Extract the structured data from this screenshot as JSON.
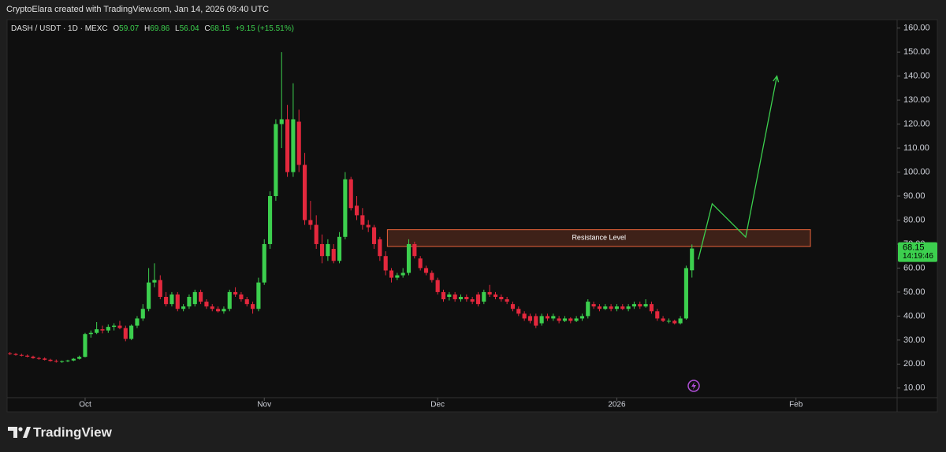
{
  "header": {
    "text": "CryptoElara created with TradingView.com, Jan 14, 2026 09:40 UTC"
  },
  "chart_data": {
    "type": "candlestick",
    "symbol": "DASH / USDT · 1D · MEXC",
    "ohlc_labels": [
      "O",
      "H",
      "L",
      "C"
    ],
    "ohlc_header": [
      59.07,
      69.86,
      56.04,
      68.15
    ],
    "change": "+9.15 (+15.51%)",
    "countdown": "14:19:46",
    "up_color": "#3ccf4e",
    "down_color": "#e3283d",
    "grid": false,
    "xlim": [
      -0.5,
      153.5
    ],
    "xticks": [
      {
        "value": 13,
        "label": "Oct"
      },
      {
        "value": 44,
        "label": "Nov"
      },
      {
        "value": 74,
        "label": "Dec"
      },
      {
        "value": 105,
        "label": "2026"
      },
      {
        "value": 136,
        "label": "Feb"
      }
    ],
    "ylim": [
      6.0,
      163.5
    ],
    "yticks": [
      {
        "value": 10,
        "label": "10.00"
      },
      {
        "value": 20,
        "label": "20.00"
      },
      {
        "value": 30,
        "label": "30.00"
      },
      {
        "value": 40,
        "label": "40.00"
      },
      {
        "value": 50,
        "label": "50.00"
      },
      {
        "value": 60,
        "label": "60.00"
      },
      {
        "value": 70,
        "label": "70.00"
      },
      {
        "value": 80,
        "label": "80.00"
      },
      {
        "value": 90,
        "label": "90.00"
      },
      {
        "value": 100,
        "label": "100.00"
      },
      {
        "value": 110,
        "label": "110.00"
      },
      {
        "value": 120,
        "label": "120.00"
      },
      {
        "value": 130,
        "label": "130.00"
      },
      {
        "value": 140,
        "label": "140.00"
      },
      {
        "value": 150,
        "label": "150.00"
      },
      {
        "value": 160,
        "label": "160.00"
      }
    ],
    "ohlc": [
      [
        24.5,
        25,
        23.8,
        24.2
      ],
      [
        24.2,
        24.6,
        23.5,
        23.8
      ],
      [
        23.8,
        24.3,
        23.2,
        23.5
      ],
      [
        23.5,
        24,
        22.8,
        23.1
      ],
      [
        23.1,
        23.5,
        22.2,
        22.5
      ],
      [
        22.5,
        23,
        21.8,
        22.3
      ],
      [
        22.3,
        22.8,
        21.5,
        21.8
      ],
      [
        21.8,
        22.2,
        21,
        21.3
      ],
      [
        21.3,
        21.9,
        20.6,
        21
      ],
      [
        21,
        21.5,
        20.5,
        21.2
      ],
      [
        21.2,
        21.8,
        20.8,
        21.5
      ],
      [
        21.5,
        22.5,
        21.2,
        22.2
      ],
      [
        22.2,
        23.5,
        21.9,
        23
      ],
      [
        23,
        33,
        22.8,
        32.5
      ],
      [
        32.5,
        34,
        31,
        33
      ],
      [
        33,
        37.5,
        32.5,
        34.5
      ],
      [
        34.5,
        36,
        32.8,
        34
      ],
      [
        34,
        36.5,
        33,
        35.5
      ],
      [
        35.5,
        37,
        34,
        36
      ],
      [
        36,
        38,
        34.5,
        35
      ],
      [
        35,
        36,
        29.5,
        30.5
      ],
      [
        30.5,
        36.5,
        30,
        36
      ],
      [
        36,
        40,
        35,
        39
      ],
      [
        39,
        45,
        38,
        43
      ],
      [
        43,
        60,
        42,
        54
      ],
      [
        54,
        62,
        52,
        55
      ],
      [
        55,
        57,
        47,
        48
      ],
      [
        48,
        50,
        44,
        45
      ],
      [
        45,
        50,
        44,
        49
      ],
      [
        49,
        50,
        42,
        43
      ],
      [
        43,
        45,
        42,
        44
      ],
      [
        44,
        49,
        43,
        48
      ],
      [
        45,
        51,
        44,
        50
      ],
      [
        50,
        51,
        45,
        46
      ],
      [
        46,
        47,
        43,
        44
      ],
      [
        44,
        45,
        42,
        43
      ],
      [
        43,
        44,
        41.5,
        42
      ],
      [
        42,
        44,
        41,
        43
      ],
      [
        43,
        51,
        42,
        50
      ],
      [
        50,
        52,
        48,
        49
      ],
      [
        49,
        50,
        46,
        47
      ],
      [
        47,
        48,
        44,
        45
      ],
      [
        45,
        46,
        41,
        43
      ],
      [
        43,
        56,
        42,
        54
      ],
      [
        54,
        72,
        53,
        70
      ],
      [
        70,
        92,
        68,
        90
      ],
      [
        90,
        122,
        88,
        120
      ],
      [
        120,
        150,
        110,
        122
      ],
      [
        122,
        128,
        98,
        100
      ],
      [
        100,
        137,
        98,
        122
      ],
      [
        121,
        126,
        100,
        103
      ],
      [
        103,
        108,
        78,
        80
      ],
      [
        80,
        88,
        76,
        78
      ],
      [
        78,
        82,
        68,
        70
      ],
      [
        70,
        74,
        62,
        65
      ],
      [
        65,
        72,
        63,
        70
      ],
      [
        68,
        70,
        62,
        63
      ],
      [
        63,
        75,
        62,
        73
      ],
      [
        73,
        100,
        72,
        97
      ],
      [
        97,
        98,
        84,
        85
      ],
      [
        86,
        90,
        80,
        82
      ],
      [
        82,
        85,
        76,
        78
      ],
      [
        78,
        80,
        75,
        77
      ],
      [
        77,
        78,
        68,
        70
      ],
      [
        72,
        73,
        63,
        65
      ],
      [
        65,
        67,
        57,
        59
      ],
      [
        59,
        60,
        54,
        56
      ],
      [
        56,
        58,
        55,
        57
      ],
      [
        57,
        60,
        56,
        58
      ],
      [
        58,
        72,
        57,
        70
      ],
      [
        70,
        71,
        64,
        65
      ],
      [
        64,
        65,
        59,
        60
      ],
      [
        60,
        61,
        57,
        58
      ],
      [
        58,
        59,
        54,
        55
      ],
      [
        55,
        56,
        49,
        50
      ],
      [
        50,
        51,
        46,
        47
      ],
      [
        48,
        50,
        46.5,
        49
      ],
      [
        49,
        50,
        46,
        47
      ],
      [
        47,
        49,
        46,
        48
      ],
      [
        48,
        49,
        46,
        47
      ],
      [
        47,
        48,
        45,
        46
      ],
      [
        49,
        50,
        44,
        45
      ],
      [
        46,
        51,
        45,
        50
      ],
      [
        50,
        53,
        48,
        49
      ],
      [
        49,
        50,
        47,
        48
      ],
      [
        48,
        49,
        46,
        47
      ],
      [
        47,
        48,
        45,
        46
      ],
      [
        45,
        46,
        42,
        43
      ],
      [
        43,
        44,
        40,
        41
      ],
      [
        41,
        42,
        38,
        39
      ],
      [
        40,
        41,
        37,
        38
      ],
      [
        40,
        41,
        35,
        36
      ],
      [
        37,
        41,
        36,
        40
      ],
      [
        40,
        41,
        38,
        39
      ],
      [
        39,
        41,
        38,
        40
      ],
      [
        39,
        40,
        37,
        38
      ],
      [
        38,
        40,
        37.5,
        39
      ],
      [
        39,
        39.5,
        37,
        38
      ],
      [
        38,
        40,
        37.5,
        39
      ],
      [
        39,
        41,
        38,
        40
      ],
      [
        40,
        47,
        39,
        46
      ],
      [
        45,
        46,
        43,
        44
      ],
      [
        44,
        45,
        42,
        43
      ],
      [
        43,
        45,
        42.5,
        44
      ],
      [
        44,
        45,
        42,
        43
      ],
      [
        43,
        45,
        42,
        44
      ],
      [
        44,
        45,
        42.5,
        43
      ],
      [
        43,
        45,
        42,
        44
      ],
      [
        44,
        46,
        43,
        45
      ],
      [
        45,
        46,
        43,
        44
      ],
      [
        44,
        47,
        43.5,
        45
      ],
      [
        45,
        46,
        41,
        42
      ],
      [
        42,
        43,
        38,
        39
      ],
      [
        39,
        40,
        37.5,
        38
      ],
      [
        38,
        39,
        37,
        38
      ],
      [
        38,
        38.5,
        36.5,
        37
      ],
      [
        37,
        40,
        36.5,
        39
      ],
      [
        39,
        61,
        38.5,
        60
      ],
      [
        59.07,
        69.86,
        56.04,
        68.15
      ]
    ],
    "annotations": [
      {
        "text": "Resistance Level",
        "xlim": [
          65.3,
          138.5
        ],
        "ylim": [
          69,
          76
        ],
        "color": "#e8623a"
      }
    ],
    "projection": {
      "color": "#3ccf4e",
      "x": [
        119.1,
        121.5,
        127.3,
        132.7
      ],
      "y": [
        63.6,
        86.8,
        72.9,
        140
      ]
    }
  },
  "footer": {
    "brand": "TradingView"
  }
}
